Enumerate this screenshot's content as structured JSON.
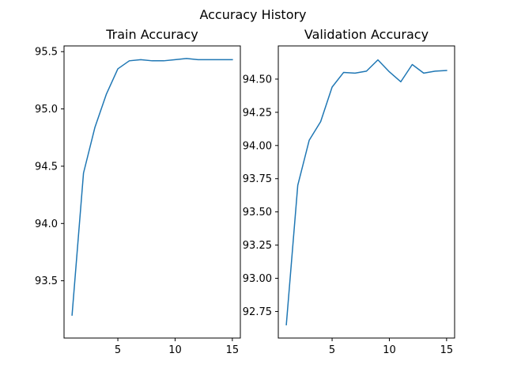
{
  "figure": {
    "suptitle": "Accuracy History"
  },
  "chart_data": [
    {
      "type": "line",
      "title": "Train Accuracy",
      "xlabel": "",
      "ylabel": "",
      "x": [
        1,
        2,
        3,
        4,
        5,
        6,
        7,
        8,
        9,
        10,
        11,
        12,
        13,
        14,
        15
      ],
      "series": [
        {
          "values": [
            93.2,
            94.44,
            94.84,
            95.13,
            95.35,
            95.42,
            95.43,
            95.42,
            95.42,
            95.43,
            95.44,
            95.43,
            95.43,
            95.43,
            95.43
          ],
          "color": "#1f77b4"
        }
      ],
      "xlim": [
        0.3,
        15.7
      ],
      "ylim": [
        93.0,
        95.55
      ],
      "xticks": [
        5,
        10,
        15
      ],
      "yticks": [
        93.5,
        94.0,
        94.5,
        95.0,
        95.5
      ],
      "xtick_labels": [
        "5",
        "10",
        "15"
      ],
      "ytick_labels": [
        "93.5",
        "94.0",
        "94.5",
        "95.0",
        "95.5"
      ],
      "grid": false
    },
    {
      "type": "line",
      "title": "Validation Accuracy",
      "xlabel": "",
      "ylabel": "",
      "x": [
        1,
        2,
        3,
        4,
        5,
        6,
        7,
        8,
        9,
        10,
        11,
        12,
        13,
        14,
        15
      ],
      "series": [
        {
          "values": [
            92.65,
            93.7,
            94.04,
            94.18,
            94.44,
            94.55,
            94.545,
            94.56,
            94.645,
            94.555,
            94.48,
            94.61,
            94.545,
            94.56,
            94.565
          ],
          "color": "#1f77b4"
        }
      ],
      "xlim": [
        0.3,
        15.7
      ],
      "ylim": [
        92.55,
        94.75
      ],
      "xticks": [
        5,
        10,
        15
      ],
      "yticks": [
        92.75,
        93.0,
        93.25,
        93.5,
        93.75,
        94.0,
        94.25,
        94.5
      ],
      "xtick_labels": [
        "5",
        "10",
        "15"
      ],
      "ytick_labels": [
        "92.75",
        "93.00",
        "93.25",
        "93.50",
        "93.75",
        "94.00",
        "94.25",
        "94.50"
      ],
      "grid": false
    }
  ]
}
